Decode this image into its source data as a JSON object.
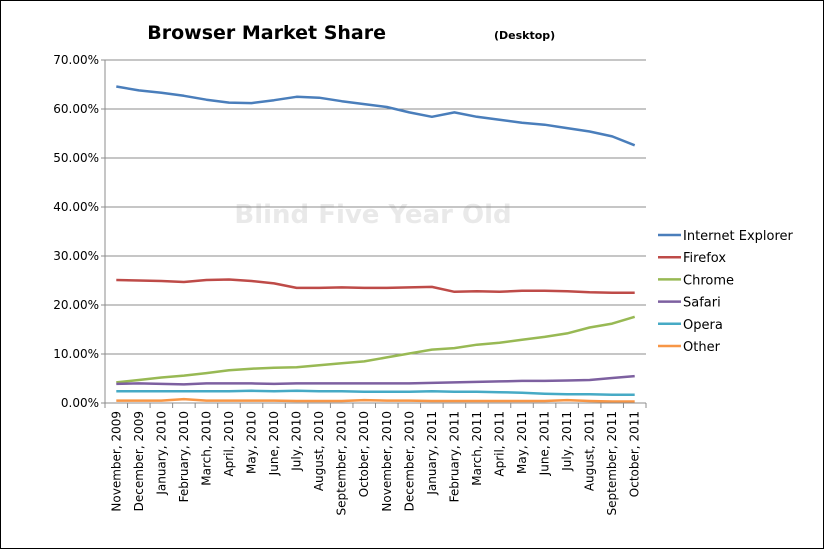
{
  "chart_data": {
    "type": "line",
    "title": "Browser Market Share",
    "subtitle": "(Desktop)",
    "watermark": "Blind Five Year Old",
    "xlabel": "",
    "ylabel": "",
    "ylim": [
      0,
      70
    ],
    "y_ticks": [
      "0.00%",
      "10.00%",
      "20.00%",
      "30.00%",
      "40.00%",
      "50.00%",
      "60.00%",
      "70.00%"
    ],
    "grid": true,
    "legend_position": "right",
    "categories": [
      "November, 2009",
      "December, 2009",
      "January, 2010",
      "February, 2010",
      "March, 2010",
      "April, 2010",
      "May, 2010",
      "June, 2010",
      "July, 2010",
      "August, 2010",
      "September, 2010",
      "October, 2010",
      "November, 2010",
      "December, 2010",
      "January, 2011",
      "February, 2011",
      "March, 2011",
      "April, 2011",
      "May, 2011",
      "June, 2011",
      "July, 2011",
      "August, 2011",
      "September, 2011",
      "October, 2011"
    ],
    "series": [
      {
        "name": "Internet Explorer",
        "color": "#4a7ebb",
        "values": [
          64.6,
          63.8,
          63.3,
          62.7,
          61.9,
          61.3,
          61.2,
          61.8,
          62.5,
          62.3,
          61.6,
          61.0,
          60.4,
          59.3,
          58.4,
          59.3,
          58.4,
          57.8,
          57.2,
          56.8,
          56.1,
          55.4,
          54.4,
          52.6
        ]
      },
      {
        "name": "Firefox",
        "color": "#be4b48",
        "values": [
          25.1,
          25.0,
          24.9,
          24.7,
          25.1,
          25.2,
          24.9,
          24.4,
          23.5,
          23.5,
          23.6,
          23.5,
          23.5,
          23.6,
          23.7,
          22.7,
          22.8,
          22.7,
          22.9,
          22.9,
          22.8,
          22.6,
          22.5,
          22.5
        ]
      },
      {
        "name": "Chrome",
        "color": "#98b954",
        "values": [
          4.2,
          4.7,
          5.2,
          5.6,
          6.1,
          6.7,
          7.0,
          7.2,
          7.3,
          7.7,
          8.1,
          8.5,
          9.3,
          10.1,
          10.9,
          11.2,
          11.9,
          12.3,
          12.9,
          13.5,
          14.2,
          15.4,
          16.2,
          17.6
        ]
      },
      {
        "name": "Safari",
        "color": "#7d60a0",
        "values": [
          3.9,
          4.0,
          3.9,
          3.8,
          4.0,
          4.0,
          4.0,
          3.9,
          4.0,
          4.0,
          4.0,
          4.0,
          4.0,
          4.0,
          4.1,
          4.2,
          4.3,
          4.4,
          4.5,
          4.5,
          4.6,
          4.7,
          5.1,
          5.5
        ]
      },
      {
        "name": "Opera",
        "color": "#46aac5",
        "values": [
          2.4,
          2.4,
          2.4,
          2.4,
          2.4,
          2.4,
          2.5,
          2.4,
          2.5,
          2.4,
          2.4,
          2.3,
          2.3,
          2.3,
          2.4,
          2.3,
          2.3,
          2.2,
          2.1,
          1.9,
          1.8,
          1.8,
          1.7,
          1.7
        ]
      },
      {
        "name": "Other",
        "color": "#f79646",
        "values": [
          0.5,
          0.5,
          0.5,
          0.8,
          0.5,
          0.5,
          0.5,
          0.5,
          0.4,
          0.4,
          0.4,
          0.6,
          0.5,
          0.5,
          0.4,
          0.4,
          0.4,
          0.4,
          0.4,
          0.4,
          0.6,
          0.4,
          0.3,
          0.3
        ]
      }
    ]
  }
}
